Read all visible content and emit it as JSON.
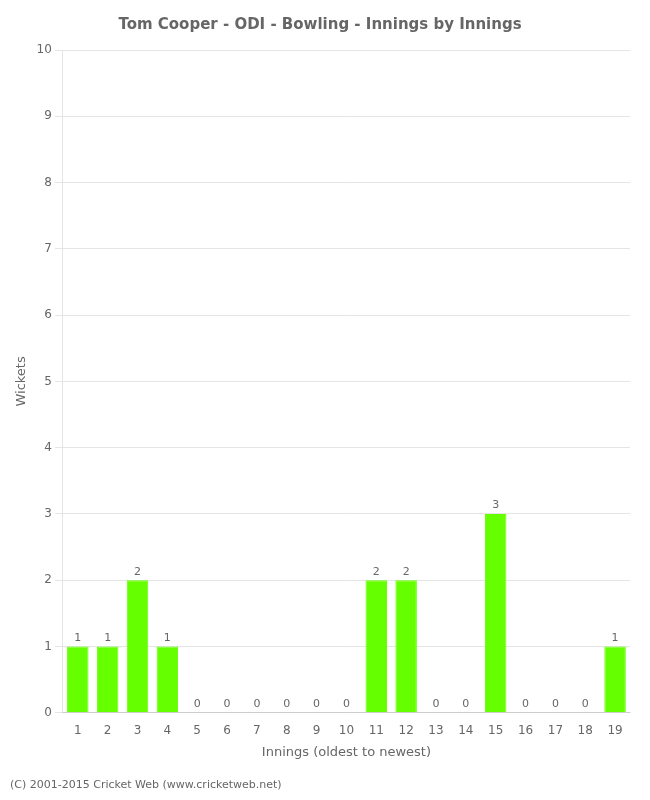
{
  "chart_data": {
    "type": "bar",
    "title": "Tom Cooper - ODI - Bowling - Innings by Innings",
    "x_label": "Innings (oldest to newest)",
    "y_label": "Wickets",
    "annotations": [
      "(C) 2001-2015 Cricket Web (www.cricketweb.net)"
    ],
    "categories": [
      "1",
      "2",
      "3",
      "4",
      "5",
      "6",
      "7",
      "8",
      "9",
      "10",
      "11",
      "12",
      "13",
      "14",
      "15",
      "16",
      "17",
      "18",
      "19"
    ],
    "values": [
      1,
      1,
      2,
      1,
      0,
      0,
      0,
      0,
      0,
      0,
      2,
      2,
      0,
      0,
      3,
      0,
      0,
      0,
      1
    ],
    "color": "#66ff00",
    "ylim": [
      0,
      10
    ],
    "yticks": [
      0,
      1,
      2,
      3,
      4,
      5,
      6,
      7,
      8,
      9,
      10
    ],
    "grid": true,
    "data_labels": true
  }
}
